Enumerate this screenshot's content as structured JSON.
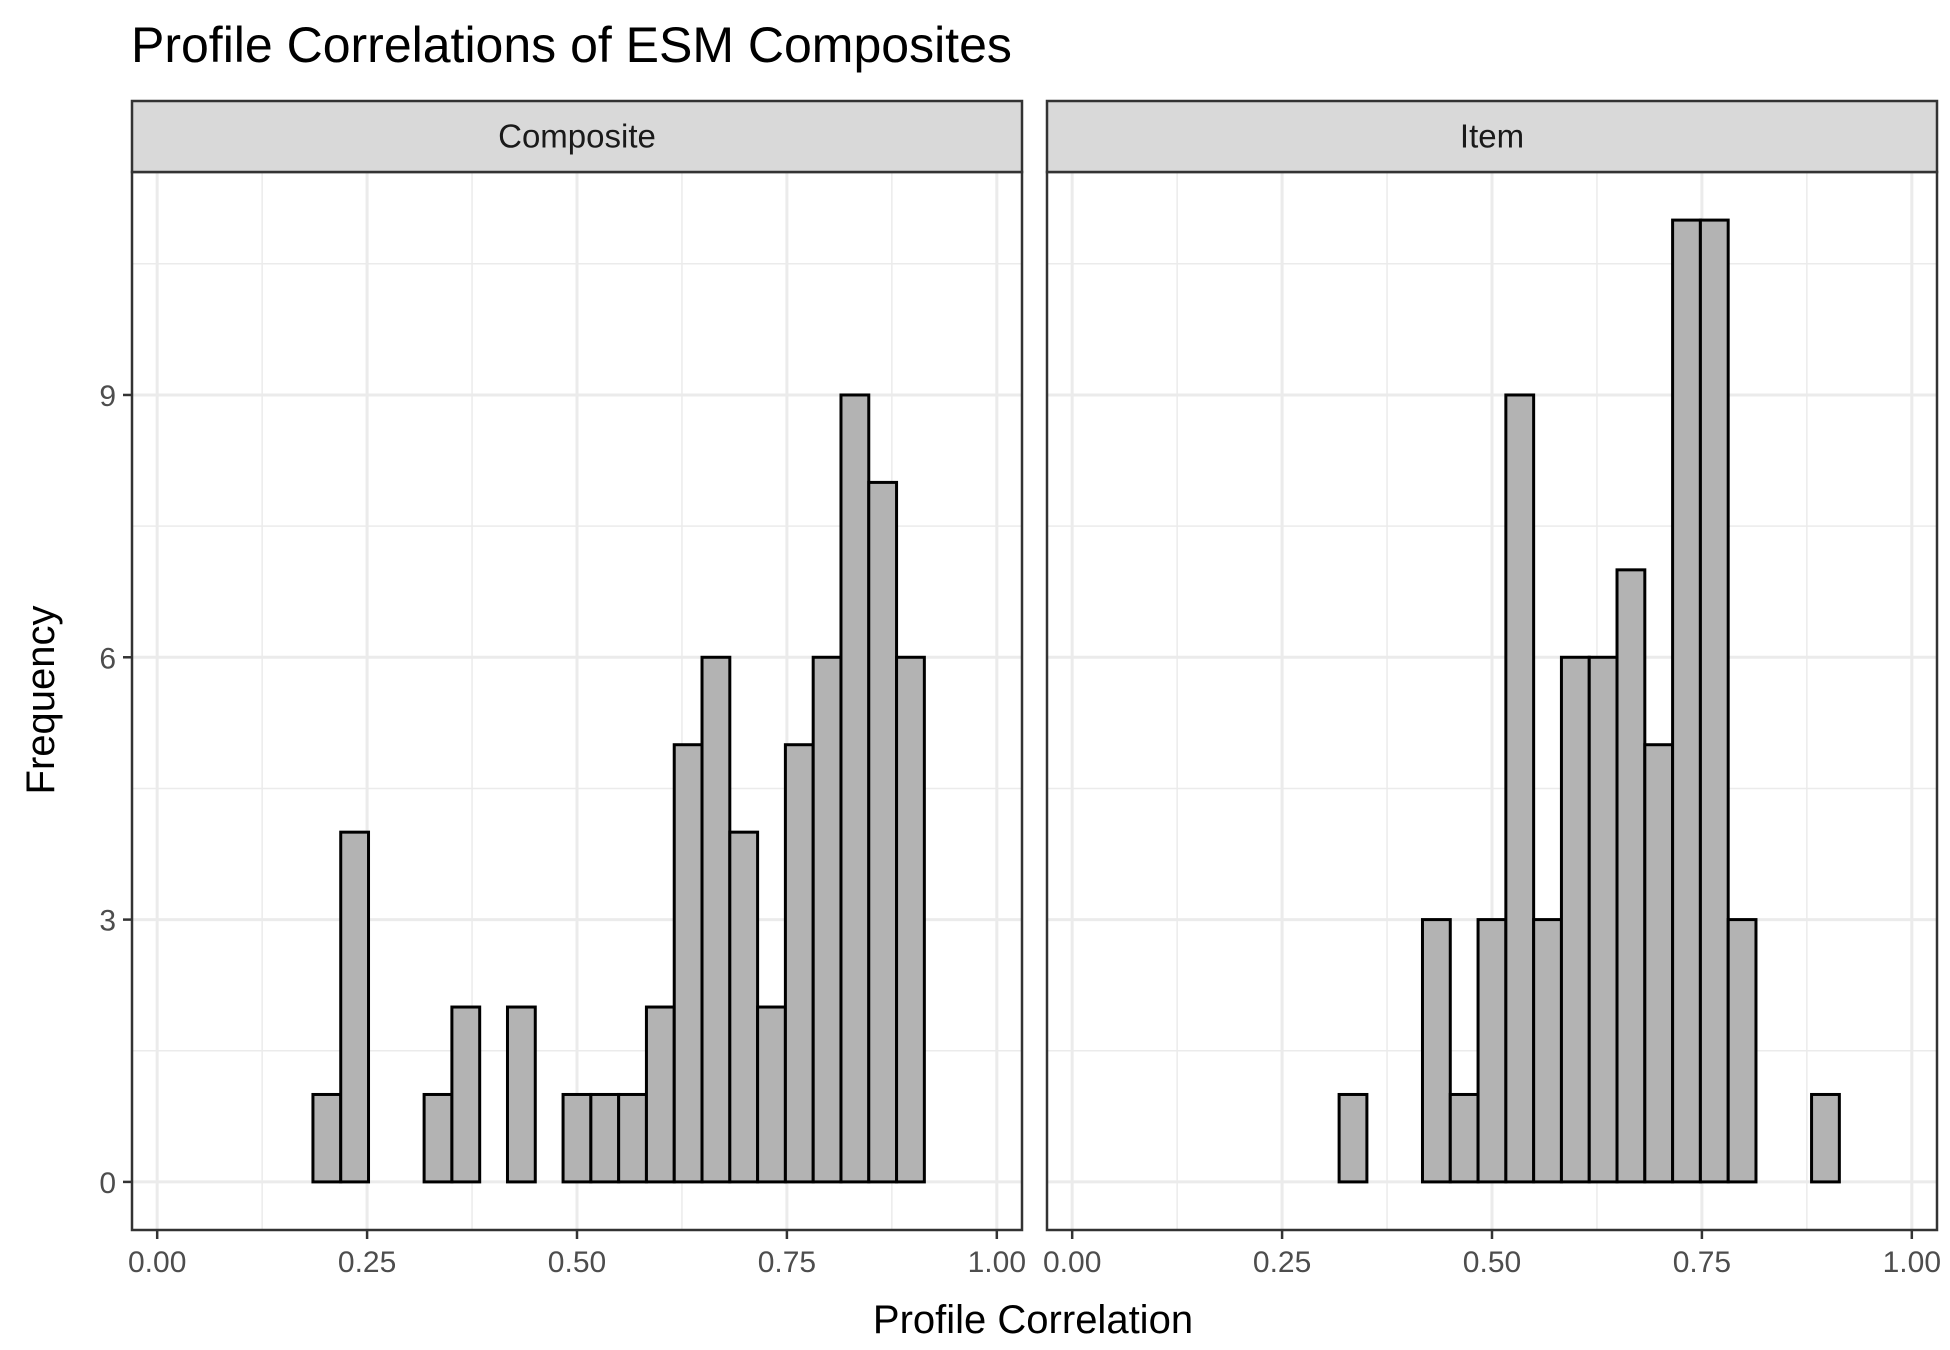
{
  "chart_data": {
    "type": "bar",
    "title": "Profile Correlations of ESM Composites",
    "xlabel": "Profile Correlation",
    "ylabel": "Frequency",
    "xlim": [
      -0.03,
      1.03
    ],
    "ylim": [
      -0.55,
      11.55
    ],
    "x_ticks": [
      0.0,
      0.25,
      0.5,
      0.75,
      1.0
    ],
    "x_tick_labels": [
      "0.00",
      "0.25",
      "0.50",
      "0.75",
      "1.00"
    ],
    "y_ticks": [
      0,
      3,
      6,
      9
    ],
    "y_tick_labels": [
      "0",
      "3",
      "6",
      "9"
    ],
    "grid": true,
    "bar_fill": "#b3b3b3",
    "bar_outline": "#000000",
    "bins": {
      "start": 0.02,
      "width": 0.0331
    },
    "panels": [
      {
        "strip": "Composite",
        "counts": [
          0,
          0,
          0,
          0,
          0,
          1,
          4,
          0,
          0,
          1,
          2,
          0,
          2,
          0,
          1,
          1,
          1,
          2,
          5,
          6,
          4,
          2,
          5,
          6,
          9,
          8,
          6,
          0,
          0,
          0
        ]
      },
      {
        "strip": "Item",
        "counts": [
          0,
          0,
          0,
          0,
          0,
          0,
          0,
          0,
          0,
          1,
          0,
          0,
          3,
          1,
          3,
          9,
          3,
          6,
          6,
          7,
          5,
          11,
          11,
          3,
          0,
          0,
          1,
          0,
          0,
          0
        ]
      }
    ]
  }
}
